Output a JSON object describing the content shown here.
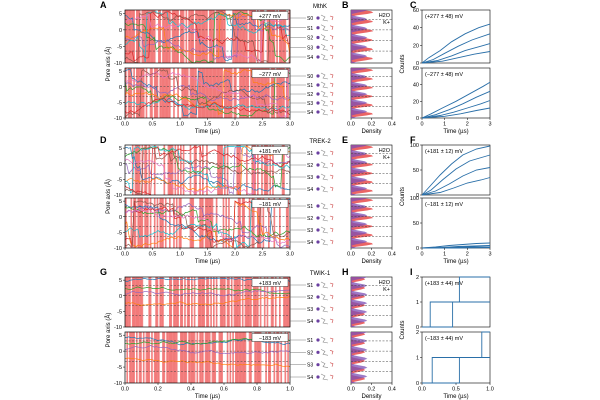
{
  "chart_data": [
    {
      "type": "line",
      "group": "row1",
      "protein": "MthK",
      "panel_letters": [
        "A",
        "B",
        "C"
      ],
      "ylabel": "Pore axis (Å)",
      "xlabel": "Time (µs)",
      "density_label": "Density",
      "counts_label": "Counts",
      "xlim": [
        0,
        3.0
      ],
      "xticks": [
        "0.0",
        "0.5",
        "1.0",
        "1.5",
        "2.0",
        "2.5",
        "3.0"
      ],
      "yticks": [
        "5",
        "0",
        "-5",
        "-10"
      ],
      "density_ticks": [
        "0.0",
        "0.2",
        "0.4"
      ],
      "counts_xticks": [
        "0",
        "1",
        "2",
        "3"
      ],
      "ion_labels": [
        "H2O",
        "K+"
      ],
      "sites": [
        "S0",
        "S1",
        "S2",
        "S3",
        "S4"
      ],
      "traces": [
        {
          "voltage": "+277 mV",
          "counts_label": "(+277 ± 48) mV",
          "counts_ylim": [
            0,
            60
          ],
          "counts_yticks": [
            "0",
            "20",
            "40",
            "60"
          ],
          "counts_series": [
            [
              0,
              0,
              0.3,
              6,
              0.8,
              14,
              1.3,
              24,
              1.9,
              33,
              2.5,
              40,
              3,
              44
            ],
            [
              0,
              0,
              0.5,
              4,
              1,
              11,
              1.6,
              19,
              2.2,
              26,
              3,
              33
            ],
            [
              0,
              0,
              0.7,
              3,
              1.3,
              8,
              1.9,
              14,
              2.6,
              19,
              3,
              22
            ],
            [
              0,
              0,
              0.9,
              2,
              1.6,
              6,
              2.3,
              10,
              3,
              13
            ]
          ]
        },
        {
          "voltage": "−277 mV",
          "counts_label": "(−277 ± 48) mV",
          "counts_ylim": [
            0,
            60
          ],
          "counts_yticks": [
            "0",
            "20",
            "40",
            "60"
          ],
          "counts_series": [
            [
              0,
              0,
              0.4,
              5,
              0.9,
              12,
              1.5,
              20,
              2.1,
              29,
              2.7,
              38,
              3,
              43
            ],
            [
              0,
              0,
              0.6,
              4,
              1.2,
              10,
              1.8,
              17,
              2.4,
              25,
              3,
              32
            ],
            [
              0,
              0,
              0.8,
              3,
              1.4,
              7,
              2,
              12,
              2.6,
              17,
              3,
              21
            ],
            [
              0,
              0,
              1,
              2,
              1.7,
              5,
              2.4,
              9,
              3,
              12
            ]
          ]
        }
      ]
    },
    {
      "type": "line",
      "group": "row2",
      "protein": "TREK-2",
      "panel_letters": [
        "D",
        "E",
        "F"
      ],
      "ylabel": "Pore axis (Å)",
      "xlabel": "Time (µs)",
      "density_label": "Density",
      "counts_label": "Counts",
      "xlim": [
        0,
        3.0
      ],
      "xticks": [
        "0.0",
        "0.5",
        "1.0",
        "1.5",
        "2.0",
        "2.5",
        "3.0"
      ],
      "yticks": [
        "5",
        "0",
        "-5",
        "-10"
      ],
      "density_ticks": [
        "0.0",
        "0.2",
        "0.4"
      ],
      "counts_xticks": [
        "0",
        "1",
        "2",
        "3"
      ],
      "ion_labels": [
        "H2O",
        "K+"
      ],
      "sites": [
        "S1",
        "S2",
        "S3",
        "S4"
      ],
      "traces": [
        {
          "voltage": "+181 mV",
          "counts_label": "(+181 ± 12) mV",
          "counts_ylim": [
            0,
            100
          ],
          "counts_yticks": [
            "0",
            "50",
            "100"
          ],
          "counts_series": [
            [
              0,
              0,
              0.3,
              15,
              0.8,
              40,
              1.3,
              62,
              1.8,
              80,
              2.4,
              92,
              3,
              98
            ],
            [
              0,
              0,
              0.4,
              10,
              0.9,
              30,
              1.5,
              52,
              2.1,
              68,
              3,
              80
            ],
            [
              0,
              0,
              0.6,
              8,
              1.2,
              22,
              1.8,
              38,
              2.4,
              50,
              3,
              55
            ],
            [
              0,
              0,
              0.8,
              5,
              1.4,
              14,
              2,
              24,
              2.6,
              30,
              3,
              35
            ]
          ]
        },
        {
          "voltage": "−181 mV",
          "counts_label": "(−181 ± 12) mV",
          "counts_ylim": [
            0,
            100
          ],
          "counts_yticks": [
            "0",
            "50",
            "100"
          ],
          "counts_series": [
            [
              0,
              0,
              0.6,
              2,
              1.2,
              5,
              1.8,
              7,
              2.4,
              9,
              3,
              10
            ],
            [
              0,
              0,
              0.9,
              1,
              1.6,
              3,
              2.3,
              4,
              3,
              5
            ],
            [
              0,
              0,
              1.2,
              1,
              2,
              2,
              3,
              2
            ],
            [
              0,
              0,
              1.5,
              0,
              3,
              1
            ]
          ]
        }
      ]
    },
    {
      "type": "line",
      "group": "row3",
      "protein": "TWIK-1",
      "panel_letters": [
        "G",
        "H",
        "I"
      ],
      "ylabel": "Pore axis (Å)",
      "xlabel": "Time (µs)",
      "density_label": "Density",
      "counts_label": "Counts",
      "xlim": [
        0,
        1.0
      ],
      "xticks": [
        "0.0",
        "0.2",
        "0.4",
        "0.6",
        "0.8",
        "1.0"
      ],
      "yticks": [
        "5",
        "0",
        "-5",
        "-10"
      ],
      "density_ticks": [
        "0.0",
        "0.2",
        "0.4"
      ],
      "counts_xticks": [
        "0.0",
        "0.5",
        "1.0"
      ],
      "ion_labels": [
        "H2O",
        "K+"
      ],
      "sites": [
        "S1",
        "S2",
        "S3",
        "S4"
      ],
      "traces": [
        {
          "voltage": "+183 mV",
          "counts_label": "(+183 ± 44) mV",
          "counts_ylim": [
            0,
            2
          ],
          "counts_yticks": [
            "0",
            "1",
            "2"
          ],
          "counts_series": [
            [
              0,
              0,
              0.45,
              0,
              0.45,
              1,
              0.55,
              1,
              0.55,
              2,
              1,
              2
            ],
            [
              0,
              0,
              0.12,
              0,
              0.12,
              1,
              1,
              1
            ]
          ]
        },
        {
          "voltage": "−183 mV",
          "counts_label": "(−183 ± 44) mV",
          "counts_ylim": [
            0,
            2
          ],
          "counts_yticks": [
            "0",
            "1",
            "2"
          ],
          "counts_series": [
            [
              0,
              0,
              0.15,
              0,
              0.15,
              1,
              0.88,
              1,
              0.88,
              2,
              1,
              2
            ],
            [
              0,
              0,
              0.55,
              0,
              0.55,
              1,
              1,
              1
            ]
          ]
        }
      ]
    }
  ]
}
